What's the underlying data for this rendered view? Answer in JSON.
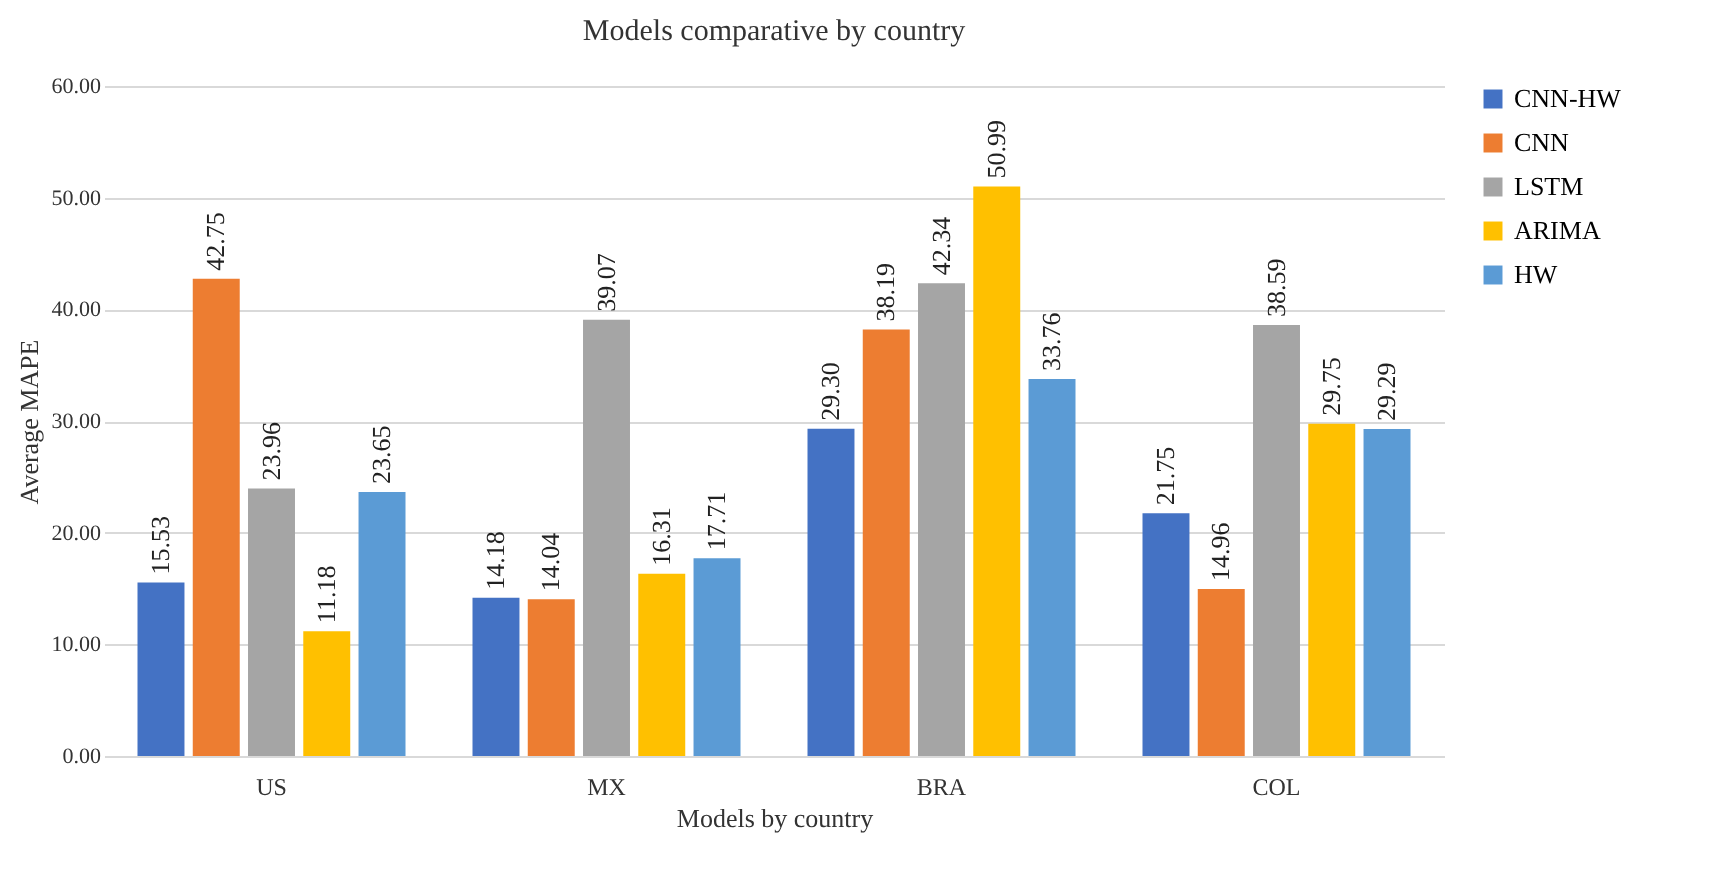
{
  "chart_data": {
    "type": "bar",
    "title": "Models comparative by country",
    "xlabel": "Models by country",
    "ylabel": "Average MAPE",
    "categories": [
      "US",
      "MX",
      "BRA",
      "COL"
    ],
    "series": [
      {
        "name": "CNN-HW",
        "color": "#4472c4",
        "values": [
          15.53,
          14.18,
          29.3,
          21.75
        ],
        "value_labels": [
          "15.53",
          "14.18",
          "29.30",
          "21.75"
        ]
      },
      {
        "name": "CNN",
        "color": "#ed7d31",
        "values": [
          42.75,
          14.04,
          38.19,
          14.96
        ],
        "value_labels": [
          "42.75",
          "14.04",
          "38.19",
          "14.96"
        ]
      },
      {
        "name": "LSTM",
        "color": "#a5a5a5",
        "values": [
          23.96,
          39.07,
          42.34,
          38.59
        ],
        "value_labels": [
          "23.96",
          "39.07",
          "42.34",
          "38.59"
        ]
      },
      {
        "name": "ARIMA",
        "color": "#ffc000",
        "values": [
          11.18,
          16.31,
          50.99,
          29.75
        ],
        "value_labels": [
          "11.18",
          "16.31",
          "50.99",
          "29.75"
        ]
      },
      {
        "name": "HW",
        "color": "#5b9bd5",
        "values": [
          23.65,
          17.71,
          33.76,
          29.29
        ],
        "value_labels": [
          "23.65",
          "17.71",
          "33.76",
          "29.29"
        ]
      }
    ],
    "ylim": [
      0,
      60
    ],
    "yticks": [
      {
        "value": 0,
        "label": "0.00"
      },
      {
        "value": 10,
        "label": "10.00"
      },
      {
        "value": 20,
        "label": "20.00"
      },
      {
        "value": 30,
        "label": "30.00"
      },
      {
        "value": 40,
        "label": "40.00"
      },
      {
        "value": 50,
        "label": "50.00"
      },
      {
        "value": 60,
        "label": "60.00"
      }
    ],
    "grid": "y",
    "legend": "right"
  }
}
